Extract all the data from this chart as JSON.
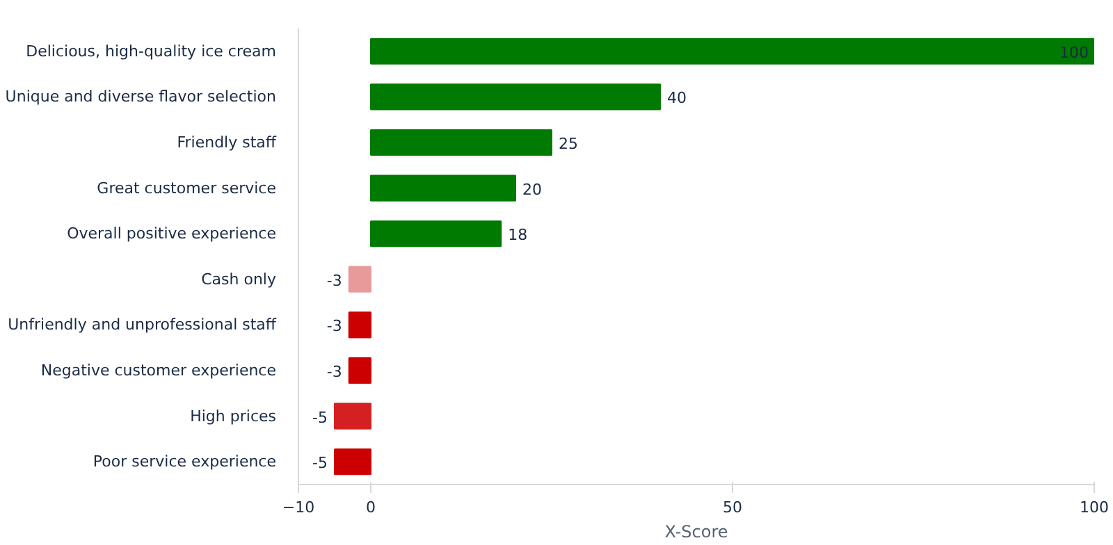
{
  "chart_data": {
    "type": "bar",
    "orientation": "horizontal",
    "xlabel": "X-Score",
    "categories": [
      "Delicious, high-quality ice cream",
      "Unique and diverse flavor selection",
      "Friendly staff",
      "Great customer service",
      "Overall positive experience",
      "Cash only",
      "Unfriendly and unprofessional staff",
      "Negative customer experience",
      "High prices",
      "Poor service experience"
    ],
    "values": [
      100,
      40,
      25,
      20,
      18,
      -3,
      -3,
      -3,
      -5,
      -5
    ],
    "colors": [
      "#007a00",
      "#007a00",
      "#007a00",
      "#007a00",
      "#007a00",
      "#e89a9a",
      "#cc0000",
      "#cc0000",
      "#d42020",
      "#cc0000"
    ],
    "xlim": [
      -10,
      100
    ],
    "xticks": [
      -10,
      0,
      50,
      100
    ],
    "data_labels": true,
    "grid": false
  }
}
